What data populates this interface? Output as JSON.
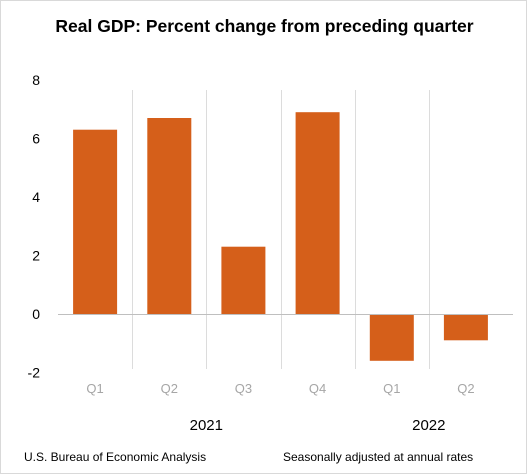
{
  "chart_data": {
    "type": "bar",
    "title": "Real GDP:  Percent change from preceding quarter",
    "categories": [
      "Q1",
      "Q2",
      "Q3",
      "Q4",
      "Q1",
      "Q2"
    ],
    "groups": [
      {
        "label": "2021",
        "categories": [
          "Q1",
          "Q2",
          "Q3",
          "Q4"
        ]
      },
      {
        "label": "2022",
        "categories": [
          "Q1",
          "Q2"
        ]
      }
    ],
    "values": [
      6.3,
      6.7,
      2.3,
      6.9,
      -1.6,
      -0.9
    ],
    "yticks": [
      "8",
      "6",
      "4",
      "2",
      "0",
      "-2"
    ],
    "ylim": [
      -2,
      8
    ],
    "xlabel": "",
    "ylabel": "",
    "grid": false,
    "bar_color": "#d55f1a"
  },
  "footer": {
    "source": "U.S. Bureau of Economic Analysis",
    "note": "Seasonally adjusted at annual rates"
  }
}
